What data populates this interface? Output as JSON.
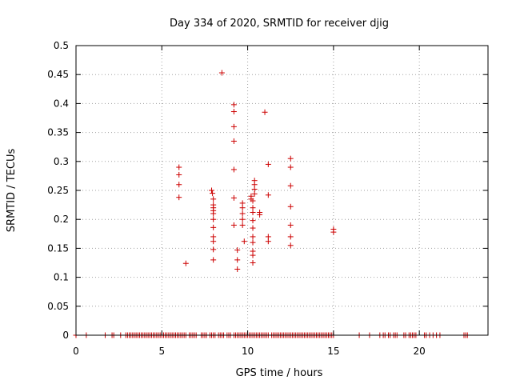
{
  "chart_data": {
    "type": "scatter",
    "title": "Day 334 of 2020, SRMTID for receiver djig",
    "xlabel": "GPS time / hours",
    "ylabel": "SRMTID / TECUs",
    "xlim": [
      0,
      24
    ],
    "ylim": [
      0,
      0.5
    ],
    "x_ticks": [
      0,
      5,
      10,
      15,
      20
    ],
    "x_tick_labels": [
      "0",
      "5",
      "10",
      "15",
      "20"
    ],
    "y_ticks": [
      0,
      0.05,
      0.1,
      0.15,
      0.2,
      0.25,
      0.3,
      0.35,
      0.4,
      0.45,
      0.5
    ],
    "y_tick_labels": [
      "0",
      "0.05",
      "0.1",
      "0.15",
      "0.2",
      "0.25",
      "0.3",
      "0.35",
      "0.4",
      "0.45",
      "0.5"
    ],
    "grid": true,
    "marker": "+",
    "color": "#cc0000",
    "series": [
      {
        "name": "SRMTID",
        "points": [
          [
            0.0,
            0
          ],
          [
            0.6,
            0
          ],
          [
            1.7,
            0
          ],
          [
            2.1,
            0
          ],
          [
            2.2,
            0
          ],
          [
            2.6,
            0
          ],
          [
            2.9,
            0
          ],
          [
            3.0,
            0
          ],
          [
            3.1,
            0
          ],
          [
            3.2,
            0
          ],
          [
            3.3,
            0
          ],
          [
            3.4,
            0
          ],
          [
            3.5,
            0
          ],
          [
            3.6,
            0
          ],
          [
            3.7,
            0
          ],
          [
            3.8,
            0
          ],
          [
            3.9,
            0
          ],
          [
            4.0,
            0
          ],
          [
            4.1,
            0
          ],
          [
            4.2,
            0
          ],
          [
            4.3,
            0
          ],
          [
            4.4,
            0
          ],
          [
            4.5,
            0
          ],
          [
            4.6,
            0
          ],
          [
            4.7,
            0
          ],
          [
            4.8,
            0
          ],
          [
            4.9,
            0
          ],
          [
            5.0,
            0
          ],
          [
            5.1,
            0
          ],
          [
            5.2,
            0
          ],
          [
            5.3,
            0
          ],
          [
            5.4,
            0
          ],
          [
            5.5,
            0
          ],
          [
            5.6,
            0
          ],
          [
            5.7,
            0
          ],
          [
            5.8,
            0
          ],
          [
            5.9,
            0
          ],
          [
            6.0,
            0
          ],
          [
            6.1,
            0
          ],
          [
            6.2,
            0
          ],
          [
            6.3,
            0
          ],
          [
            6.4,
            0
          ],
          [
            6.6,
            0
          ],
          [
            6.7,
            0
          ],
          [
            6.8,
            0
          ],
          [
            6.9,
            0
          ],
          [
            7.0,
            0
          ],
          [
            7.3,
            0
          ],
          [
            7.4,
            0
          ],
          [
            7.5,
            0
          ],
          [
            7.6,
            0
          ],
          [
            7.8,
            0
          ],
          [
            7.9,
            0
          ],
          [
            8.0,
            0
          ],
          [
            8.1,
            0
          ],
          [
            8.3,
            0
          ],
          [
            8.4,
            0
          ],
          [
            8.5,
            0
          ],
          [
            8.6,
            0
          ],
          [
            8.8,
            0
          ],
          [
            8.9,
            0
          ],
          [
            9.0,
            0
          ],
          [
            9.2,
            0
          ],
          [
            9.3,
            0
          ],
          [
            9.4,
            0
          ],
          [
            9.5,
            0
          ],
          [
            9.6,
            0
          ],
          [
            9.7,
            0
          ],
          [
            9.8,
            0
          ],
          [
            9.9,
            0
          ],
          [
            10.0,
            0
          ],
          [
            10.1,
            0
          ],
          [
            10.2,
            0
          ],
          [
            10.3,
            0
          ],
          [
            10.4,
            0
          ],
          [
            10.5,
            0
          ],
          [
            10.6,
            0
          ],
          [
            10.7,
            0
          ],
          [
            10.8,
            0
          ],
          [
            10.9,
            0
          ],
          [
            11.0,
            0
          ],
          [
            11.1,
            0
          ],
          [
            11.2,
            0
          ],
          [
            11.4,
            0
          ],
          [
            11.5,
            0
          ],
          [
            11.6,
            0
          ],
          [
            11.7,
            0
          ],
          [
            11.8,
            0
          ],
          [
            11.9,
            0
          ],
          [
            12.0,
            0
          ],
          [
            12.1,
            0
          ],
          [
            12.2,
            0
          ],
          [
            12.3,
            0
          ],
          [
            12.4,
            0
          ],
          [
            12.5,
            0
          ],
          [
            12.6,
            0
          ],
          [
            12.7,
            0
          ],
          [
            12.8,
            0
          ],
          [
            12.9,
            0
          ],
          [
            13.0,
            0
          ],
          [
            13.1,
            0
          ],
          [
            13.2,
            0
          ],
          [
            13.3,
            0
          ],
          [
            13.4,
            0
          ],
          [
            13.5,
            0
          ],
          [
            13.6,
            0
          ],
          [
            13.7,
            0
          ],
          [
            13.8,
            0
          ],
          [
            13.9,
            0
          ],
          [
            14.0,
            0
          ],
          [
            14.1,
            0
          ],
          [
            14.2,
            0
          ],
          [
            14.3,
            0
          ],
          [
            14.4,
            0
          ],
          [
            14.5,
            0
          ],
          [
            14.6,
            0
          ],
          [
            14.7,
            0
          ],
          [
            14.8,
            0
          ],
          [
            14.9,
            0
          ],
          [
            15.0,
            0
          ],
          [
            16.5,
            0
          ],
          [
            17.1,
            0
          ],
          [
            17.7,
            0
          ],
          [
            17.9,
            0
          ],
          [
            18.0,
            0
          ],
          [
            18.2,
            0
          ],
          [
            18.3,
            0
          ],
          [
            18.5,
            0
          ],
          [
            18.6,
            0
          ],
          [
            18.7,
            0
          ],
          [
            19.1,
            0
          ],
          [
            19.2,
            0
          ],
          [
            19.4,
            0
          ],
          [
            19.5,
            0
          ],
          [
            19.6,
            0
          ],
          [
            19.7,
            0
          ],
          [
            19.8,
            0
          ],
          [
            20.3,
            0
          ],
          [
            20.4,
            0
          ],
          [
            20.6,
            0
          ],
          [
            20.8,
            0
          ],
          [
            21.0,
            0
          ],
          [
            21.2,
            0
          ],
          [
            22.6,
            0
          ],
          [
            22.7,
            0
          ],
          [
            22.8,
            0
          ],
          [
            6.0,
            0.29
          ],
          [
            6.0,
            0.277
          ],
          [
            6.0,
            0.26
          ],
          [
            6.0,
            0.238
          ],
          [
            6.4,
            0.124
          ],
          [
            7.9,
            0.25
          ],
          [
            7.95,
            0.245
          ],
          [
            8.0,
            0.235
          ],
          [
            8.0,
            0.225
          ],
          [
            8.0,
            0.22
          ],
          [
            8.0,
            0.215
          ],
          [
            8.0,
            0.21
          ],
          [
            8.0,
            0.2
          ],
          [
            8.0,
            0.186
          ],
          [
            8.0,
            0.17
          ],
          [
            8.0,
            0.162
          ],
          [
            8.0,
            0.148
          ],
          [
            8.0,
            0.13
          ],
          [
            8.5,
            0.453
          ],
          [
            9.2,
            0.398
          ],
          [
            9.2,
            0.386
          ],
          [
            9.2,
            0.36
          ],
          [
            9.2,
            0.335
          ],
          [
            9.2,
            0.286
          ],
          [
            9.2,
            0.237
          ],
          [
            9.2,
            0.19
          ],
          [
            9.4,
            0.147
          ],
          [
            9.4,
            0.13
          ],
          [
            9.4,
            0.114
          ],
          [
            9.7,
            0.228
          ],
          [
            9.7,
            0.22
          ],
          [
            9.7,
            0.21
          ],
          [
            9.7,
            0.2
          ],
          [
            9.7,
            0.19
          ],
          [
            9.8,
            0.162
          ],
          [
            10.2,
            0.24
          ],
          [
            10.2,
            0.235
          ],
          [
            10.3,
            0.232
          ],
          [
            10.3,
            0.22
          ],
          [
            10.3,
            0.212
          ],
          [
            10.3,
            0.198
          ],
          [
            10.3,
            0.185
          ],
          [
            10.3,
            0.17
          ],
          [
            10.3,
            0.16
          ],
          [
            10.3,
            0.145
          ],
          [
            10.3,
            0.138
          ],
          [
            10.3,
            0.125
          ],
          [
            10.4,
            0.267
          ],
          [
            10.4,
            0.26
          ],
          [
            10.4,
            0.252
          ],
          [
            10.4,
            0.244
          ],
          [
            10.7,
            0.212
          ],
          [
            10.7,
            0.208
          ],
          [
            11.0,
            0.385
          ],
          [
            11.2,
            0.295
          ],
          [
            11.2,
            0.242
          ],
          [
            11.2,
            0.17
          ],
          [
            11.2,
            0.162
          ],
          [
            12.5,
            0.305
          ],
          [
            12.5,
            0.29
          ],
          [
            12.5,
            0.258
          ],
          [
            12.5,
            0.222
          ],
          [
            12.5,
            0.19
          ],
          [
            12.5,
            0.17
          ],
          [
            12.5,
            0.155
          ],
          [
            15.0,
            0.183
          ],
          [
            15.0,
            0.178
          ]
        ]
      }
    ]
  }
}
